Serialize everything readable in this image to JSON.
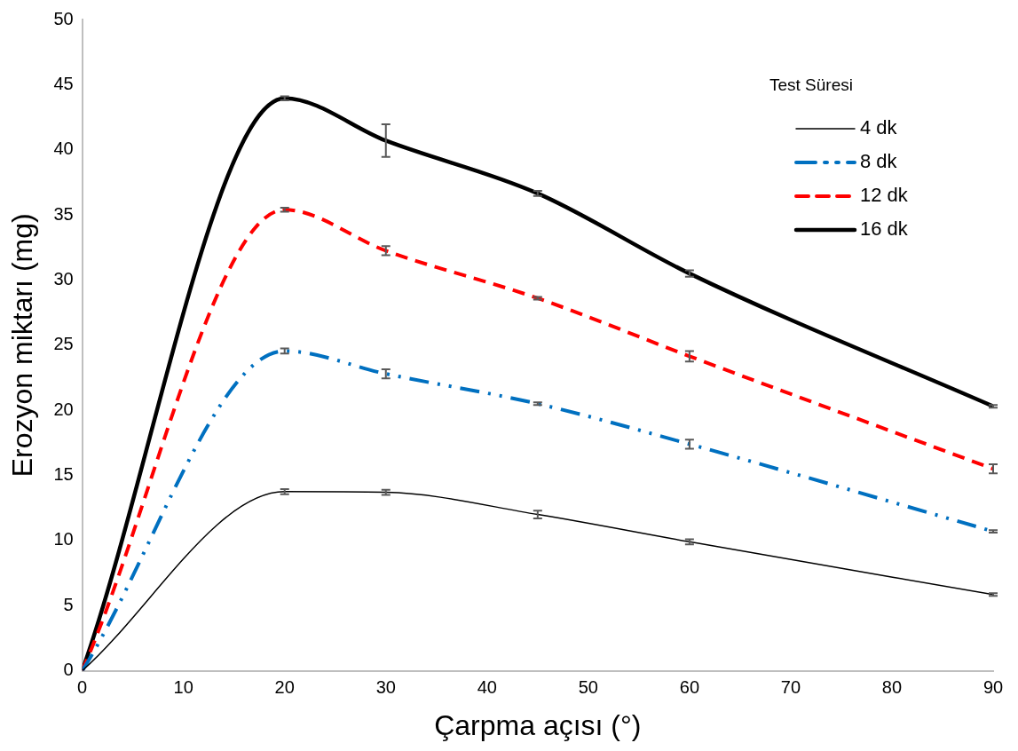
{
  "chart_data": {
    "type": "line",
    "xlabel": "Çarpma açısı (°)",
    "ylabel": "Erozyon miktarı (mg)",
    "legend_title": "Test Süresi",
    "x": [
      0,
      20,
      30,
      45,
      60,
      90
    ],
    "series": [
      {
        "name": "4 dk",
        "color": "#000000",
        "line_style": "solid",
        "values": [
          0,
          13.75,
          13.7,
          12.0,
          9.9,
          5.85
        ],
        "errors": [
          null,
          0.2,
          0.2,
          0.3,
          0.2,
          0.1
        ]
      },
      {
        "name": "8 dk",
        "color": "#0070c0",
        "line_style": "dotted",
        "values": [
          0,
          24.55,
          22.8,
          20.5,
          17.4,
          10.7
        ],
        "errors": [
          null,
          0.2,
          0.35,
          0.1,
          0.35,
          0.1
        ]
      },
      {
        "name": "12 dk",
        "color": "#ff0000",
        "line_style": "dashed",
        "values": [
          0,
          35.4,
          32.25,
          28.6,
          24.15,
          15.5
        ],
        "errors": [
          null,
          0.15,
          0.35,
          0.1,
          0.4,
          0.35
        ]
      },
      {
        "name": "16 dk",
        "color": "#000000",
        "line_style": "solid",
        "values": [
          0,
          43.95,
          40.7,
          36.65,
          30.5,
          20.3
        ],
        "errors": [
          null,
          0.15,
          1.25,
          0.2,
          0.25,
          0.1
        ]
      }
    ],
    "xlim": [
      0,
      90
    ],
    "xticks": [
      0,
      10,
      20,
      30,
      40,
      50,
      60,
      70,
      80,
      90
    ],
    "ylim": [
      0,
      50
    ],
    "yticks": [
      0,
      5,
      10,
      15,
      20,
      25,
      30,
      35,
      40,
      45,
      50
    ],
    "grid": false,
    "legend": "top right"
  }
}
